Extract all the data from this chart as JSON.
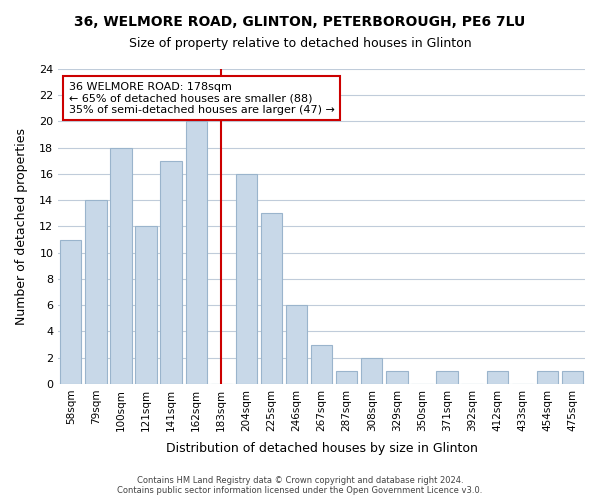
{
  "title_line1": "36, WELMORE ROAD, GLINTON, PETERBOROUGH, PE6 7LU",
  "title_line2": "Size of property relative to detached houses in Glinton",
  "xlabel": "Distribution of detached houses by size in Glinton",
  "ylabel": "Number of detached properties",
  "bar_labels": [
    "58sqm",
    "79sqm",
    "100sqm",
    "121sqm",
    "141sqm",
    "162sqm",
    "183sqm",
    "204sqm",
    "225sqm",
    "246sqm",
    "267sqm",
    "287sqm",
    "308sqm",
    "329sqm",
    "350sqm",
    "371sqm",
    "392sqm",
    "412sqm",
    "433sqm",
    "454sqm",
    "475sqm"
  ],
  "bar_values": [
    11,
    14,
    18,
    12,
    17,
    20,
    0,
    16,
    13,
    6,
    3,
    1,
    2,
    1,
    0,
    1,
    0,
    1,
    0,
    1,
    1
  ],
  "bar_color": "#c8d8e8",
  "bar_edge_color": "#9ab4cc",
  "vline_x_index": 6,
  "vline_color": "#cc0000",
  "annotation_title": "36 WELMORE ROAD: 178sqm",
  "annotation_line2": "← 65% of detached houses are smaller (88)",
  "annotation_line3": "35% of semi-detached houses are larger (47) →",
  "annotation_box_color": "#ffffff",
  "annotation_box_edge_color": "#cc0000",
  "ylim": [
    0,
    24
  ],
  "yticks": [
    0,
    2,
    4,
    6,
    8,
    10,
    12,
    14,
    16,
    18,
    20,
    22,
    24
  ],
  "footer_line1": "Contains HM Land Registry data © Crown copyright and database right 2024.",
  "footer_line2": "Contains public sector information licensed under the Open Government Licence v3.0.",
  "background_color": "#ffffff",
  "grid_color": "#c0ccda"
}
